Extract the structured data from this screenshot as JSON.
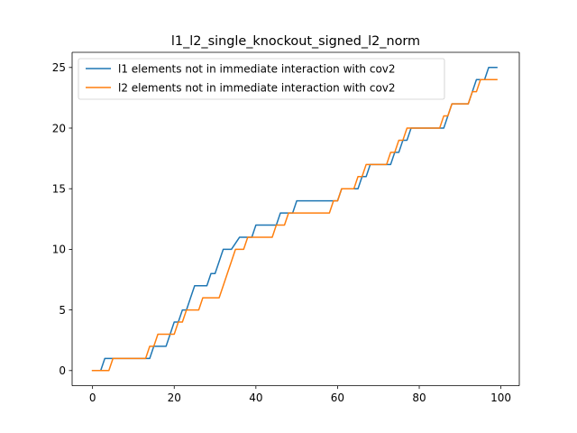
{
  "chart_data": {
    "type": "line",
    "title": "l1_l2_single_knockout_signed_l2_norm",
    "xlabel": "",
    "ylabel": "",
    "xlim": [
      -5,
      104.5
    ],
    "ylim": [
      -1.25,
      26.25
    ],
    "xticks": [
      0,
      20,
      40,
      60,
      80,
      100
    ],
    "yticks": [
      0,
      5,
      10,
      15,
      20,
      25
    ],
    "grid": false,
    "legend_position": "top-left",
    "series": [
      {
        "name": "l1 elements not in immediate interaction with cov2",
        "color": "#1f77b4",
        "points": [
          [
            0,
            0
          ],
          [
            2,
            0
          ],
          [
            3,
            1
          ],
          [
            14,
            1
          ],
          [
            15,
            2
          ],
          [
            18,
            2
          ],
          [
            19,
            3
          ],
          [
            20,
            4
          ],
          [
            21,
            4
          ],
          [
            22,
            5
          ],
          [
            23,
            5
          ],
          [
            24,
            6
          ],
          [
            25,
            7
          ],
          [
            28,
            7
          ],
          [
            29,
            8
          ],
          [
            30,
            8
          ],
          [
            31,
            9
          ],
          [
            32,
            10
          ],
          [
            34,
            10
          ],
          [
            36,
            11
          ],
          [
            39,
            11
          ],
          [
            40,
            12
          ],
          [
            45,
            12
          ],
          [
            46,
            13
          ],
          [
            49,
            13
          ],
          [
            50,
            14
          ],
          [
            60,
            14
          ],
          [
            61,
            15
          ],
          [
            65,
            15
          ],
          [
            66,
            16
          ],
          [
            67,
            16
          ],
          [
            68,
            17
          ],
          [
            73,
            17
          ],
          [
            74,
            18
          ],
          [
            75,
            18
          ],
          [
            76,
            19
          ],
          [
            77,
            19
          ],
          [
            78,
            20
          ],
          [
            86,
            20
          ],
          [
            87,
            21
          ],
          [
            88,
            22
          ],
          [
            92,
            22
          ],
          [
            93,
            23
          ],
          [
            94,
            24
          ],
          [
            96,
            24
          ],
          [
            97,
            25
          ],
          [
            99,
            25
          ]
        ]
      },
      {
        "name": "l2 elements not in immediate interaction with cov2",
        "color": "#ff7f0e",
        "points": [
          [
            0,
            0
          ],
          [
            4,
            0
          ],
          [
            5,
            1
          ],
          [
            13,
            1
          ],
          [
            14,
            2
          ],
          [
            15,
            2
          ],
          [
            16,
            3
          ],
          [
            20,
            3
          ],
          [
            21,
            4
          ],
          [
            22,
            4
          ],
          [
            23,
            5
          ],
          [
            26,
            5
          ],
          [
            27,
            6
          ],
          [
            31,
            6
          ],
          [
            32,
            7
          ],
          [
            33,
            8
          ],
          [
            34,
            9
          ],
          [
            35,
            10
          ],
          [
            37,
            10
          ],
          [
            38,
            11
          ],
          [
            44,
            11
          ],
          [
            45,
            12
          ],
          [
            47,
            12
          ],
          [
            48,
            13
          ],
          [
            58,
            13
          ],
          [
            59,
            14
          ],
          [
            60,
            14
          ],
          [
            61,
            15
          ],
          [
            64,
            15
          ],
          [
            65,
            16
          ],
          [
            66,
            16
          ],
          [
            67,
            17
          ],
          [
            72,
            17
          ],
          [
            73,
            18
          ],
          [
            74,
            18
          ],
          [
            75,
            19
          ],
          [
            76,
            19
          ],
          [
            77,
            20
          ],
          [
            85,
            20
          ],
          [
            86,
            21
          ],
          [
            87,
            21
          ],
          [
            88,
            22
          ],
          [
            92,
            22
          ],
          [
            93,
            23
          ],
          [
            94,
            23
          ],
          [
            95,
            24
          ],
          [
            99,
            24
          ]
        ]
      }
    ]
  }
}
